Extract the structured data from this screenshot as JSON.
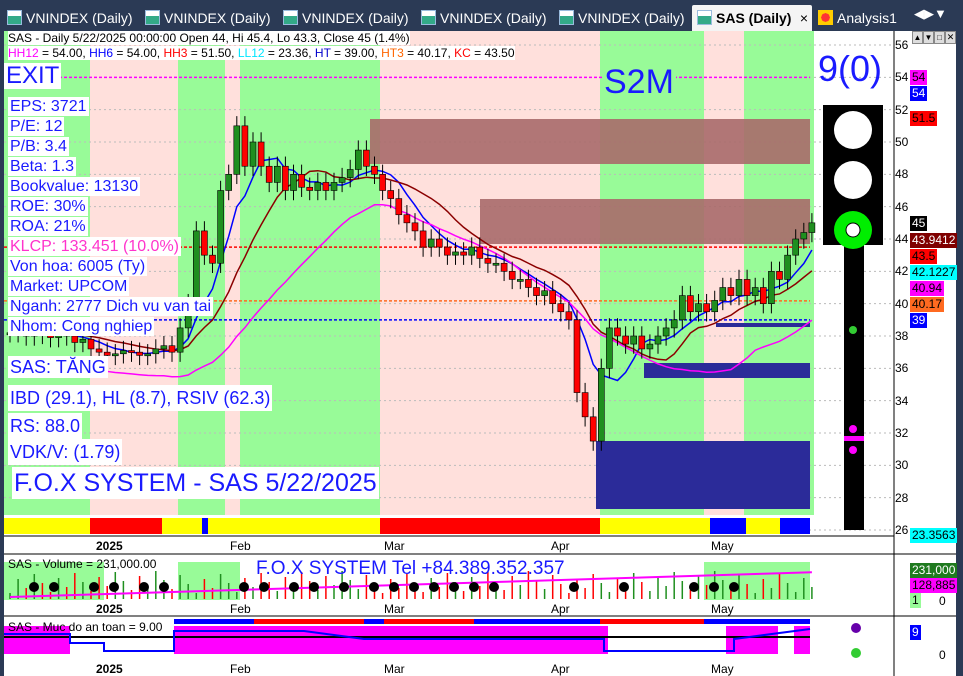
{
  "tabs": [
    {
      "label": "VNINDEX (Daily)"
    },
    {
      "label": "VNINDEX (Daily)"
    },
    {
      "label": "VNINDEX (Daily)"
    },
    {
      "label": "VNINDEX (Daily)"
    },
    {
      "label": "VNINDEX (Daily)"
    },
    {
      "label": "SAS (Daily)",
      "active": true
    },
    {
      "label": "Analysis1"
    }
  ],
  "header": {
    "line1": "SAS - Daily 5/22/2025 00:00:00 Open 44, Hi 45.4, Lo 43.3, Close 45 (1.4%)",
    "indicators": [
      {
        "t": "HH12",
        "v": " = 54.00, ",
        "c": "#ff00ff"
      },
      {
        "t": "HH6",
        "v": " = 54.00, ",
        "c": "#0000ff"
      },
      {
        "t": "HH3",
        "v": " = 51.50, ",
        "c": "#ff0000"
      },
      {
        "t": "LL12",
        "v": " = 23.36, ",
        "c": "#00e5ff"
      },
      {
        "t": "HT",
        "v": "  = 39.00, ",
        "c": "#0000cc"
      },
      {
        "t": "HT3",
        "v": "  = 40.17, ",
        "c": "#ff6600"
      },
      {
        "t": "KC",
        "v": " = 43.50",
        "c": "#ff0000"
      }
    ]
  },
  "signal": "EXIT",
  "s2m": "S2M",
  "score": "9(0)",
  "fundamentals": [
    "EPS: 3721",
    "P/E: 12",
    "P/B: 3.4",
    "Beta: 1.3",
    "Bookvalue: 13130",
    "ROE: 30%",
    "ROA: 21%",
    "KLCP: 133.451 (10.0%)",
    "Von hoa: 6005 (Ty)",
    "Market: UPCOM",
    "Nganh: 2777 Dich vu van tai",
    "Nhom: Cong nghiep"
  ],
  "trend": "SAS: TĂNG",
  "ratings": "IBD (29.1), HL (8.7), RSIV (62.3)",
  "rs": "RS: 88.0",
  "vdk": "VDK/V:  (1.79)",
  "watermark": "F.O.X SYSTEM - SAS 5/22/2025",
  "price_axis": {
    "ticks": [
      56,
      54,
      52,
      50,
      48,
      46,
      44,
      42,
      40,
      38,
      36,
      34,
      32,
      30,
      28,
      26
    ],
    "range": [
      26,
      56
    ]
  },
  "price_labels": [
    {
      "v": "54",
      "bg": "#ff00ff",
      "fg": "#000"
    },
    {
      "v": "54",
      "bg": "#0000ff",
      "fg": "#fff"
    },
    {
      "v": "51.5",
      "bg": "#ff0000",
      "fg": "#000"
    },
    {
      "v": "45",
      "bg": "#000",
      "fg": "#fff"
    },
    {
      "v": "43.9412",
      "bg": "#800000",
      "fg": "#fff"
    },
    {
      "v": "43.5",
      "bg": "#ff0000",
      "fg": "#000"
    },
    {
      "v": "42.1227",
      "bg": "#00ffff",
      "fg": "#000"
    },
    {
      "v": "40.94",
      "bg": "#ff00ff",
      "fg": "#000"
    },
    {
      "v": "40.17",
      "bg": "#ff6a20",
      "fg": "#000"
    },
    {
      "v": "39",
      "bg": "#0000ff",
      "fg": "#fff"
    },
    {
      "v": "23.3563",
      "bg": "#00ffff",
      "fg": "#000"
    }
  ],
  "price_label_values": [
    54,
    54,
    51.5,
    45,
    43.9412,
    43.5,
    42.1227,
    40.94,
    40.17,
    39,
    23.3563
  ],
  "closes": [
    38.2,
    38.4,
    38.0,
    38.3,
    38.1,
    37.9,
    38.2,
    38.0,
    37.6,
    37.8,
    37.2,
    37.0,
    36.8,
    36.9,
    37.1,
    37.0,
    36.8,
    36.9,
    37.2,
    37.4,
    37.0,
    38.5,
    40.0,
    44.5,
    43.0,
    42.5,
    47.0,
    48.0,
    51.0,
    48.5,
    50.0,
    48.5,
    47.5,
    48.5,
    47.0,
    48.0,
    47.2,
    47.0,
    47.5,
    47.0,
    47.5,
    47.8,
    48.3,
    49.5,
    48.5,
    48.0,
    47.0,
    46.5,
    45.5,
    45.0,
    44.5,
    43.5,
    44.0,
    43.5,
    43.0,
    43.2,
    43.0,
    43.5,
    42.8,
    42.5,
    42.5,
    42.0,
    41.5,
    41.5,
    41.0,
    40.5,
    40.8,
    40.0,
    39.5,
    39.0,
    34.5,
    33.0,
    31.5,
    36.0,
    38.5,
    38.0,
    37.5,
    38.0,
    37.2,
    37.5,
    38.0,
    38.5,
    39.0,
    40.5,
    39.5,
    40.0,
    39.5,
    40.2,
    41.0,
    40.5,
    41.5,
    40.5,
    41.0,
    40.0,
    42.0,
    41.5,
    43.0,
    44.0,
    44.4,
    45.0
  ],
  "date_axis": [
    "2025",
    "Feb",
    "Mar",
    "Apr",
    "May"
  ],
  "volume": {
    "title": "SAS - Volume = 231,000.00",
    "tel": "F.O.X SYSTEM Tel +84.389.352.357",
    "labels": [
      {
        "v": "231,000",
        "bg": "#1f7a1f",
        "fg": "#fff"
      },
      {
        "v": "128,885",
        "bg": "#ff00ff",
        "fg": "#000"
      },
      {
        "v": "1",
        "bg": "#98fb98",
        "fg": "#000"
      }
    ],
    "zero": "0"
  },
  "safety": {
    "title": "SAS - Muc do an toan = 9.00",
    "value": "9",
    "zero": "0"
  },
  "colors": {
    "up": "#1f8f1f",
    "down": "#ff0000",
    "green_zone": "#98fb98",
    "pink_zone": "#ffe0dc",
    "resistance": "#a86a6a",
    "support": "#2b2b99"
  }
}
